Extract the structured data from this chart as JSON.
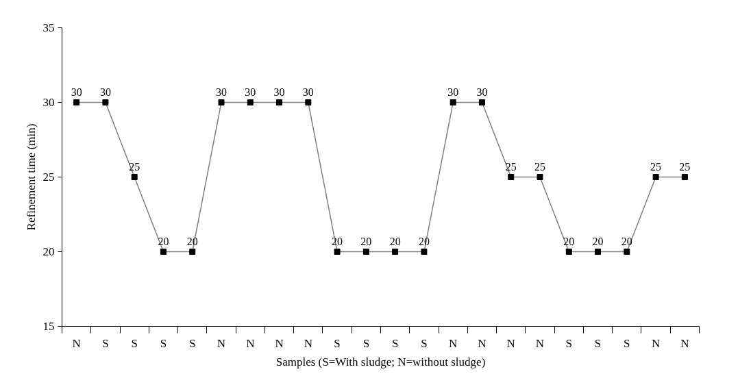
{
  "chart_data": {
    "type": "line",
    "xlabel": "Samples (S=With sludge; N=without sludge)",
    "ylabel": "Refinement time (min)",
    "categories": [
      "N",
      "S",
      "S",
      "S",
      "S",
      "N",
      "N",
      "N",
      "N",
      "S",
      "S",
      "S",
      "S",
      "N",
      "N",
      "N",
      "N",
      "S",
      "S",
      "S",
      "N",
      "N"
    ],
    "series": [
      {
        "color": "#808080",
        "values": [
          30,
          30,
          25,
          20,
          20,
          30,
          30,
          30,
          30,
          20,
          20,
          20,
          20,
          30,
          30,
          25,
          25,
          20,
          20,
          20,
          25,
          25
        ]
      }
    ],
    "ylim": [
      15,
      35
    ],
    "yticks": [
      15,
      20,
      25,
      30,
      35
    ],
    "marker": "square",
    "line_style": "solid",
    "grid": false,
    "data_labels": true
  }
}
